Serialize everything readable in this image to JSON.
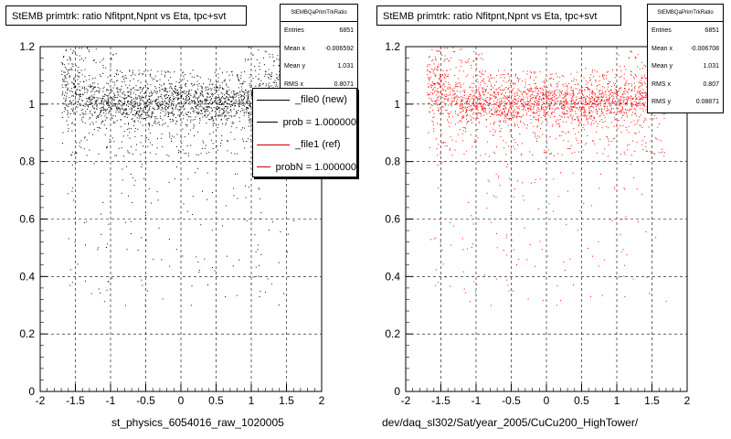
{
  "footer_date": "",
  "chart_data": [
    {
      "type": "scatter",
      "title": "StEMB primtrk: ratio Nfitpnt,Npnt vs Eta, tpc+svt",
      "xlabel": "st_physics_6054016_raw_1020005",
      "ylabel": "",
      "xlim": [
        -2,
        2
      ],
      "ylim": [
        0,
        1.2
      ],
      "xticks": [
        "-2",
        "-1.5",
        "-1",
        "-0.5",
        "0",
        "0.5",
        "1",
        "1.5",
        "2"
      ],
      "yticks": [
        "0",
        "0.2",
        "0.4",
        "0.6",
        "0.8",
        "1",
        "1.2"
      ],
      "grid": true,
      "point_color": "#000000",
      "stats": {
        "title": "StEMBQaPrimTrkRatio",
        "rows": [
          {
            "label": "Entries",
            "value": "6851"
          },
          {
            "label": "Mean x",
            "value": "-0.006592"
          },
          {
            "label": "Mean y",
            "value": "1.031"
          },
          {
            "label": "RMS x",
            "value": "0.8071"
          }
        ]
      },
      "legend": {
        "placement": "upper-right",
        "entries": [
          {
            "label": "_file0 (new)",
            "color": "#000000"
          },
          {
            "label": "prob = 1.000000",
            "color": "#000000"
          },
          {
            "label": "_file1 (ref)",
            "color": "#cc0000"
          },
          {
            "label": "probN = 1.000000",
            "color": "#cc0000"
          }
        ]
      }
    },
    {
      "type": "scatter",
      "title": "StEMB primtrk: ratio Nfitpnt,Npnt vs Eta, tpc+svt",
      "xlabel": "dev/daq_sl302/Sat/year_2005/CuCu200_HighTower/",
      "ylabel": "",
      "xlim": [
        -2,
        2
      ],
      "ylim": [
        0,
        1.2
      ],
      "xticks": [
        "-2",
        "-1.5",
        "-1",
        "-0.5",
        "0",
        "0.5",
        "1",
        "1.5",
        "2"
      ],
      "yticks": [
        "0",
        "0.2",
        "0.4",
        "0.6",
        "0.8",
        "1",
        "1.2"
      ],
      "grid": true,
      "point_color": "#ff0000",
      "stats": {
        "title": "StEMBQaPrimTrkRatio",
        "rows": [
          {
            "label": "Entries",
            "value": "6851"
          },
          {
            "label": "Mean x",
            "value": "-0.006708"
          },
          {
            "label": "Mean y",
            "value": "1.031"
          },
          {
            "label": "RMS x",
            "value": "0.807"
          },
          {
            "label": "RMS y",
            "value": "0.08871"
          }
        ]
      }
    }
  ]
}
